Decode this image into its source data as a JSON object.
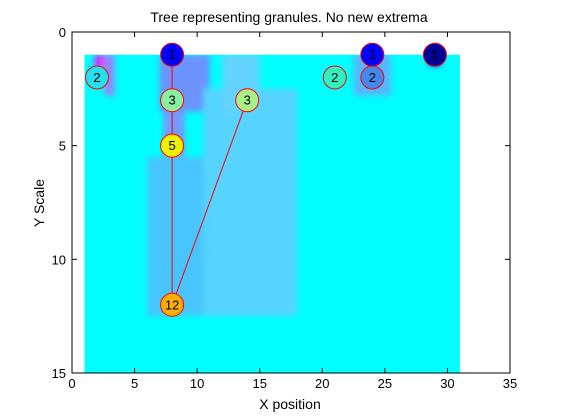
{
  "chart_data": {
    "type": "scatter",
    "title": "Tree representing granules. No new extrema",
    "xlabel": "X position",
    "ylabel": "Y Scale",
    "xlim": [
      0,
      35
    ],
    "ylim": [
      0,
      15
    ],
    "y_reversed": true,
    "xticks": [
      0,
      5,
      10,
      15,
      20,
      25,
      30,
      35
    ],
    "yticks": [
      0,
      5,
      10,
      15
    ],
    "grid": false,
    "legend": "none",
    "background_image": {
      "description": "granule map",
      "x_range": [
        1,
        31
      ],
      "y_range": [
        1,
        15
      ],
      "base_color": "#00ffff",
      "patches": [
        {
          "x": [
            1.8,
            2.8
          ],
          "y": [
            1,
            1.6
          ],
          "color": "#ff00ff"
        },
        {
          "x": [
            2.6,
            3.4
          ],
          "y": [
            1,
            2.8
          ],
          "color": "#b070ff"
        },
        {
          "x": [
            7,
            11
          ],
          "y": [
            1,
            3.5
          ],
          "color": "#8080ff"
        },
        {
          "x": [
            7.3,
            9
          ],
          "y": [
            3.5,
            5.5
          ],
          "color": "#8888ff"
        },
        {
          "x": [
            6,
            10.5
          ],
          "y": [
            5.5,
            12.5
          ],
          "color": "#55bbff"
        },
        {
          "x": [
            10.5,
            18
          ],
          "y": [
            2.5,
            12.5
          ],
          "color": "#66ccff"
        },
        {
          "x": [
            12,
            15
          ],
          "y": [
            1,
            3.5
          ],
          "color": "#77ccff"
        },
        {
          "x": [
            22.5,
            25.5
          ],
          "y": [
            1,
            2.8
          ],
          "color": "#66aaff"
        },
        {
          "x": [
            28.5,
            29.5
          ],
          "y": [
            1,
            1.5
          ],
          "color": "#2222ff"
        }
      ]
    },
    "nodes": [
      {
        "label": "1",
        "x": 8,
        "y": 1,
        "color": "#0000ff"
      },
      {
        "label": "2",
        "x": 2,
        "y": 2,
        "color": "#22e0ee"
      },
      {
        "label": "3",
        "x": 8,
        "y": 3,
        "color": "#88f0a0"
      },
      {
        "label": "3",
        "x": 14,
        "y": 3,
        "color": "#a8f088"
      },
      {
        "label": "5",
        "x": 8,
        "y": 5,
        "color": "#f0f000"
      },
      {
        "label": "12",
        "x": 8,
        "y": 12,
        "color": "#ffb000"
      },
      {
        "label": "2",
        "x": 21,
        "y": 2,
        "color": "#30f0c0"
      },
      {
        "label": "1",
        "x": 24,
        "y": 1,
        "color": "#0000ff"
      },
      {
        "label": "2",
        "x": 24,
        "y": 2,
        "color": "#4488ee"
      },
      {
        "label": "1",
        "x": 29,
        "y": 1,
        "color": "#000099"
      }
    ],
    "edges": [
      {
        "from": 0,
        "to": 5
      },
      {
        "from": 3,
        "to": 5
      },
      {
        "from": 7,
        "to": 8
      }
    ],
    "edge_color": "#ff0000"
  }
}
